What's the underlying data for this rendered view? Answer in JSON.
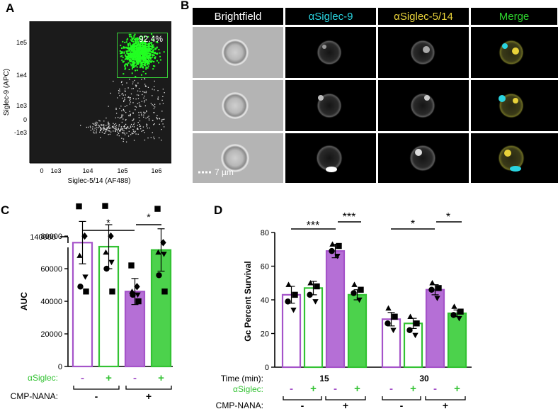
{
  "panels": {
    "A": "A",
    "B": "B",
    "C": "C",
    "D": "D"
  },
  "flow": {
    "gate_percent": "92.4%",
    "xlabel": "Siglec-5/14 (AF488)",
    "ylabel": "Siglec-9 (APC)",
    "xticks": [
      "0",
      "1e3",
      "1e4",
      "1e5",
      "1e6"
    ],
    "yticks": [
      "1e5",
      "1e4",
      "1e3",
      "0",
      "-1e3"
    ]
  },
  "imaging": {
    "channels": [
      {
        "label": "Brightfield",
        "color": "#ffffff"
      },
      {
        "label": "αSiglec-9",
        "color": "#2ad4e0"
      },
      {
        "label": "αSiglec-5/14",
        "color": "#e8d23a"
      },
      {
        "label": "Merge",
        "color": "#2ed12e"
      }
    ],
    "scalebar": "7 µm"
  },
  "colors": {
    "purple": "#a553c9",
    "purple_fill": "#b56fd6",
    "green": "#33c233",
    "green_fill": "#4cd24c"
  },
  "chart_data": [
    {
      "type": "bar",
      "panel": "C",
      "ylabel": "AUC",
      "yticks": [
        "0",
        "20000",
        "40000",
        "60000",
        "80000",
        "140000"
      ],
      "ylim": [
        0,
        140000
      ],
      "axis_break": true,
      "categories": [
        "- / -",
        "+ / -",
        "- / +",
        "+ / +"
      ],
      "values": [
        76000,
        73500,
        46000,
        71500
      ],
      "errors": [
        13000,
        13500,
        8000,
        13000
      ],
      "points": [
        [
          110000,
          80000,
          68000,
          55000,
          49000,
          46000
        ],
        [
          111000,
          80000,
          70000,
          64000,
          60000,
          46000
        ],
        [
          62000,
          49000,
          46000,
          44000,
          44000,
          40000
        ],
        [
          103000,
          76000,
          70000,
          69000,
          56000,
          46000
        ]
      ],
      "row_labels": [
        "αSiglec:",
        "CMP-NANA:"
      ],
      "asiglec": [
        "-",
        "+",
        "-",
        "+"
      ],
      "cmpnana": [
        "-",
        "+"
      ],
      "significance": [
        "*",
        "*"
      ]
    },
    {
      "type": "bar",
      "panel": "D",
      "ylabel": "Gc Percent Survival",
      "yticks": [
        "0",
        "20",
        "40",
        "60",
        "80"
      ],
      "ylim": [
        0,
        80
      ],
      "time_label": "Time (min):",
      "times": [
        "15",
        "30"
      ],
      "groups": [
        {
          "time": "15",
          "values": [
            43,
            47,
            69,
            43
          ],
          "errors": [
            5,
            4,
            4,
            3
          ],
          "points": [
            [
              49,
              43,
              39,
              34
            ],
            [
              50,
              48,
              43,
              39
            ],
            [
              73,
              72,
              69,
              66
            ],
            [
              49,
              46,
              44,
              40
            ]
          ]
        },
        {
          "time": "30",
          "values": [
            28.5,
            26,
            46,
            32
          ],
          "errors": [
            4,
            3,
            3,
            2
          ],
          "points": [
            [
              35,
              30,
              26,
              22
            ],
            [
              30,
              26,
              22,
              19
            ],
            [
              50,
              47,
              46,
              41
            ],
            [
              36,
              33,
              31,
              29
            ]
          ]
        }
      ],
      "row_labels": [
        "αSiglec:",
        "CMP-NANA:"
      ],
      "asiglec": [
        "-",
        "+",
        "-",
        "+"
      ],
      "cmpnana": [
        "-",
        "+"
      ],
      "significance": [
        "***",
        "***",
        "*",
        "*"
      ]
    }
  ]
}
